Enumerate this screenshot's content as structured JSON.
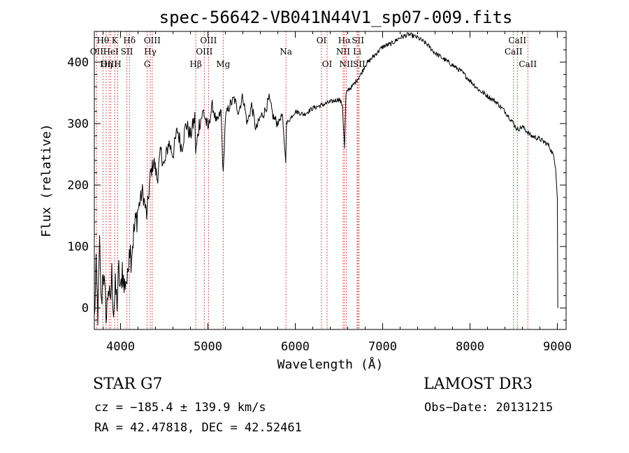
{
  "chart_data": {
    "type": "line",
    "title": "spec-56642-VB041N44V1_sp07-009.fits",
    "xlabel": "Wavelength (Å)",
    "ylabel": "Flux (relative)",
    "xlim": [
      3700,
      9100
    ],
    "ylim": [
      -35,
      450
    ],
    "xticks": [
      4000,
      5000,
      6000,
      7000,
      8000,
      9000
    ],
    "yticks": [
      0,
      100,
      200,
      300,
      400
    ],
    "xtick_labels": [
      "4000",
      "5000",
      "6000",
      "7000",
      "8000",
      "9000"
    ],
    "ytick_labels": [
      "0",
      "100",
      "200",
      "300",
      "400"
    ],
    "series": [
      {
        "name": "flux",
        "color": "#000000",
        "x": [
          3700,
          3720,
          3740,
          3760,
          3780,
          3800,
          3820,
          3840,
          3860,
          3880,
          3900,
          3920,
          3940,
          3960,
          3980,
          4000,
          4020,
          4040,
          4060,
          4080,
          4100,
          4120,
          4150,
          4200,
          4250,
          4300,
          4340,
          4380,
          4420,
          4460,
          4500,
          4550,
          4600,
          4650,
          4700,
          4750,
          4800,
          4850,
          4860,
          4900,
          4950,
          5000,
          5050,
          5100,
          5150,
          5175,
          5200,
          5250,
          5300,
          5350,
          5400,
          5450,
          5500,
          5550,
          5600,
          5650,
          5700,
          5750,
          5800,
          5850,
          5890,
          5900,
          5950,
          6000,
          6100,
          6200,
          6300,
          6400,
          6500,
          6540,
          6563,
          6580,
          6600,
          6650,
          6700,
          6750,
          6800,
          6900,
          7000,
          7100,
          7200,
          7300,
          7400,
          7500,
          7600,
          7700,
          7800,
          7900,
          8000,
          8100,
          8200,
          8300,
          8400,
          8500,
          8540,
          8600,
          8700,
          8800,
          8900,
          8950,
          8980,
          9000,
          9005
        ],
        "y": [
          -20,
          60,
          -10,
          100,
          0,
          70,
          20,
          -15,
          40,
          0,
          55,
          -5,
          30,
          10,
          60,
          20,
          70,
          30,
          50,
          40,
          110,
          85,
          120,
          160,
          190,
          150,
          215,
          240,
          210,
          255,
          230,
          270,
          250,
          290,
          260,
          300,
          280,
          310,
          250,
          300,
          320,
          290,
          330,
          300,
          320,
          215,
          310,
          330,
          340,
          320,
          345,
          300,
          330,
          290,
          310,
          320,
          340,
          310,
          300,
          315,
          240,
          300,
          310,
          320,
          315,
          325,
          330,
          335,
          340,
          330,
          260,
          345,
          355,
          360,
          370,
          380,
          395,
          410,
          425,
          430,
          440,
          445,
          440,
          430,
          415,
          405,
          395,
          385,
          370,
          355,
          345,
          335,
          320,
          300,
          290,
          295,
          280,
          275,
          265,
          250,
          230,
          180,
          0
        ]
      }
    ],
    "line_labels": [
      {
        "label": "Hθ",
        "x": 3798,
        "row": 1
      },
      {
        "label": "OII",
        "x": 3727,
        "row": 2
      },
      {
        "label": "OIII",
        "x": 3869,
        "row": 3
      },
      {
        "label": "K",
        "x": 3934,
        "row": 1
      },
      {
        "label": "HeI",
        "x": 3889,
        "row": 2
      },
      {
        "label": "Hη",
        "x": 3835,
        "row": 3
      },
      {
        "label": "H",
        "x": 3968,
        "row": 3
      },
      {
        "label": "Hδ",
        "x": 4102,
        "row": 1
      },
      {
        "label": "SII",
        "x": 4072,
        "row": 2
      },
      {
        "label": "OIII",
        "x": 4363,
        "row": 1
      },
      {
        "label": "Hγ",
        "x": 4340,
        "row": 2
      },
      {
        "label": "G",
        "x": 4305,
        "row": 3
      },
      {
        "label": "Hβ",
        "x": 4861,
        "row": 3
      },
      {
        "label": "OIII",
        "x": 5007,
        "row": 1
      },
      {
        "label": "OIII",
        "x": 4959,
        "row": 2
      },
      {
        "label": "Mg",
        "x": 5175,
        "row": 3
      },
      {
        "label": "Na",
        "x": 5893,
        "row": 2
      },
      {
        "label": "OI",
        "x": 6300,
        "row": 1
      },
      {
        "label": "OI",
        "x": 6364,
        "row": 3
      },
      {
        "label": "Hα",
        "x": 6563,
        "row": 1
      },
      {
        "label": "NII",
        "x": 6548,
        "row": 2
      },
      {
        "label": "NII",
        "x": 6584,
        "row": 3
      },
      {
        "label": "SII",
        "x": 6717,
        "row": 1
      },
      {
        "label": "Li",
        "x": 6708,
        "row": 2
      },
      {
        "label": "SII",
        "x": 6731,
        "row": 3
      },
      {
        "label": "CaII",
        "x": 8542,
        "row": 1
      },
      {
        "label": "CaII",
        "x": 8498,
        "row": 2
      },
      {
        "label": "CaII",
        "x": 8662,
        "row": 3
      }
    ],
    "line_colors": {
      "marker": "#cc2222"
    }
  },
  "info": {
    "object": "STAR    G7",
    "survey": "LAMOST DR3",
    "cz": "cz = −185.4 ± 139.9 km/s",
    "obs_date": "Obs−Date: 20131215",
    "radec": "RA =  42.47818, DEC =  42.52461"
  }
}
